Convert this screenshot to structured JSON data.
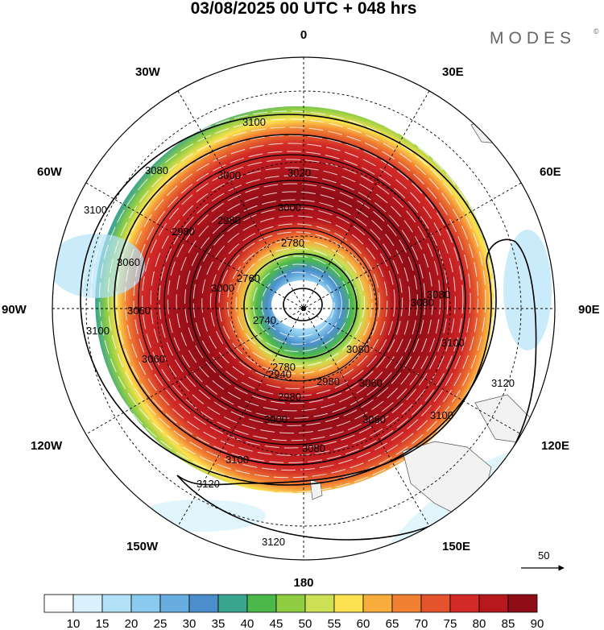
{
  "header": {
    "title": "03/08/2025  00 UTC  + 048 hrs",
    "brand": "MODES",
    "brand_mark": "©"
  },
  "map": {
    "projection": "south-polar-stereographic",
    "field": "wind speed (shaded) and geopotential height (contours) with streamlines",
    "longitude_labels": {
      "top": "0",
      "upper_right": "30E",
      "right_upper": "60E",
      "right": "90E",
      "lower_right": "120E",
      "bottom_right": "150E",
      "bottom": "180",
      "bottom_left": "150W",
      "lower_left": "120W",
      "left": "90W",
      "left_upper": "60W",
      "upper_left": "30W"
    },
    "contour_labels": [
      "3100",
      "3080",
      "3020",
      "3000",
      "3000",
      "2980",
      "2980",
      "2780",
      "2780",
      "2760",
      "2740",
      "3080",
      "3060",
      "3060",
      "3060",
      "3100",
      "3100",
      "3120",
      "3120",
      "3120",
      "3100",
      "3080",
      "3060",
      "3000",
      "2980",
      "2940",
      "2980",
      "3100",
      "3080",
      "3060",
      "3000",
      "3100",
      "3080"
    ],
    "contour_levels_drawn": [
      2740,
      2780,
      2860,
      2940,
      3000,
      3040,
      3080,
      3100,
      3120
    ],
    "reference_vector_label": "50"
  },
  "colorbar": {
    "labels": [
      "10",
      "15",
      "20",
      "25",
      "30",
      "35",
      "40",
      "45",
      "50",
      "55",
      "60",
      "65",
      "70",
      "75",
      "80",
      "85",
      "90"
    ],
    "colors": [
      "#ffffff",
      "#d9f2fd",
      "#b3e2f8",
      "#8bcaef",
      "#67ade0",
      "#4a8fcb",
      "#3aa58e",
      "#4bb849",
      "#8fcd43",
      "#cbe055",
      "#fce150",
      "#f7ac3c",
      "#f18032",
      "#e4532c",
      "#d22a27",
      "#b7181e",
      "#8f0d16"
    ]
  },
  "colors": {
    "land": "#f2f2f2",
    "contour": "#000000",
    "streamline": "#ffffff"
  }
}
